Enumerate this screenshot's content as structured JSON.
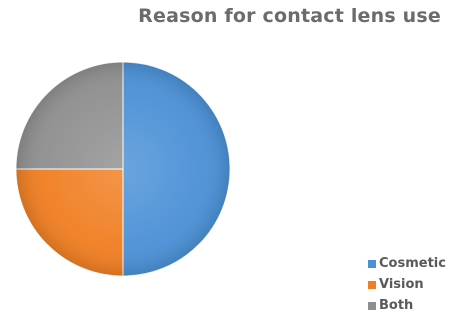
{
  "chart_data": {
    "type": "pie",
    "title": "Reason for contact lens use",
    "categories": [
      "Cosmetic",
      "Vision",
      "Both"
    ],
    "values": [
      50,
      25,
      25
    ],
    "colors": [
      "#4a90d6",
      "#f07e22",
      "#8f8f8f"
    ],
    "legend_position": "bottom-right"
  }
}
